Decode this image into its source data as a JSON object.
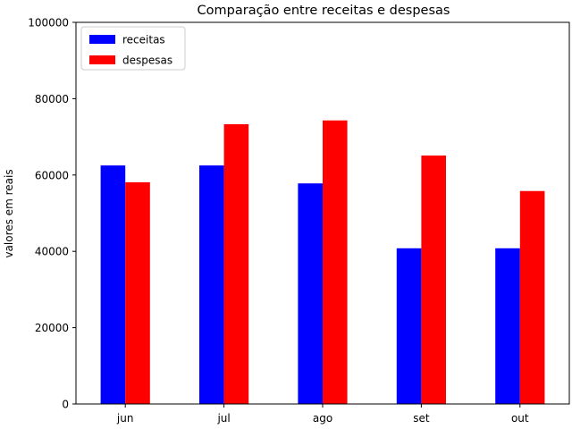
{
  "chart_data": {
    "type": "bar",
    "title": "Comparação entre receitas e despesas",
    "xlabel": "",
    "ylabel": "valores em reais",
    "categories": [
      "jun",
      "jul",
      "ago",
      "set",
      "out"
    ],
    "series": [
      {
        "name": "receitas",
        "color": "#0000ff",
        "values": [
          62500,
          62500,
          57800,
          40800,
          40800
        ]
      },
      {
        "name": "despesas",
        "color": "#ff0000",
        "values": [
          58100,
          73300,
          74300,
          65100,
          55800
        ]
      }
    ],
    "ylim": [
      0,
      100000
    ],
    "yticks": [
      "0",
      "20000",
      "40000",
      "60000",
      "80000",
      "100000"
    ],
    "grid": false,
    "legend_position": "top-left"
  }
}
